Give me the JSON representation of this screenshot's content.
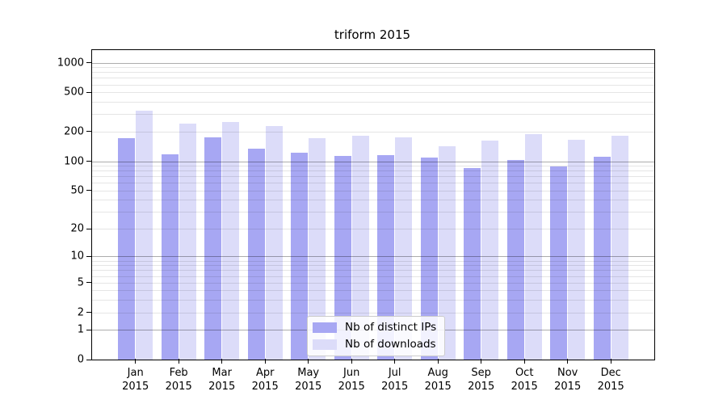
{
  "chart_data": {
    "type": "bar",
    "title": "triform 2015",
    "xlabel": "",
    "ylabel": "",
    "y_scale": "log1p",
    "grid": true,
    "legend_position": "inside lower-center",
    "yticks": [
      0,
      1,
      2,
      5,
      10,
      20,
      50,
      100,
      200,
      500,
      1000
    ],
    "ylim": [
      0,
      1360
    ],
    "categories": [
      "Jan",
      "Feb",
      "Mar",
      "Apr",
      "May",
      "Jun",
      "Jul",
      "Aug",
      "Sep",
      "Oct",
      "Nov",
      "Dec"
    ],
    "year": "2015",
    "series": [
      {
        "name": "Nb of distinct IPs",
        "color": "#a7a7f3",
        "values": [
          170,
          117,
          176,
          135,
          122,
          114,
          116,
          108,
          85,
          103,
          89,
          112
        ]
      },
      {
        "name": "Nb of downloads",
        "color": "#dcdcf9",
        "values": [
          328,
          240,
          250,
          226,
          171,
          180,
          175,
          142,
          161,
          188,
          164,
          182
        ]
      }
    ]
  }
}
